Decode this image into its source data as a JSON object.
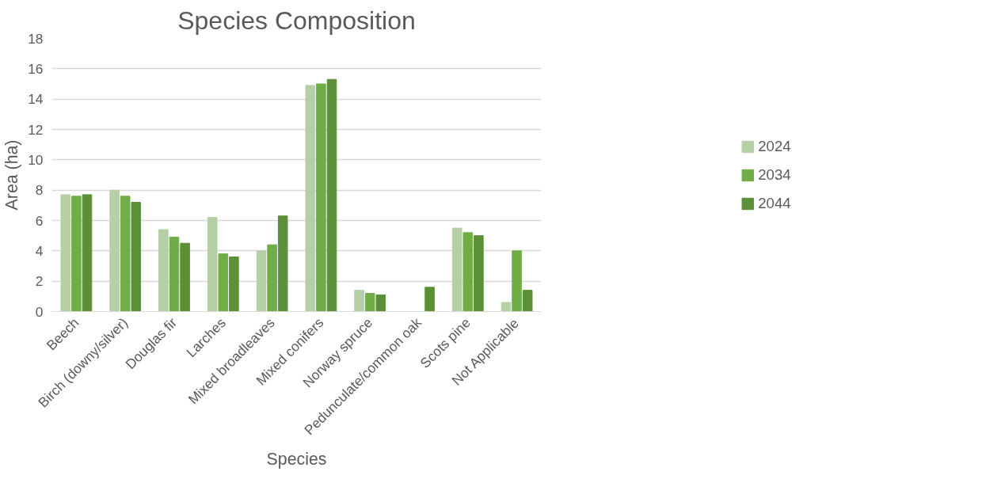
{
  "chart_data": {
    "type": "bar",
    "title": "Species Composition",
    "xlabel": "Species",
    "ylabel": "Area (ha)",
    "categories": [
      "Beech",
      "Birch (downy/silver)",
      "Douglas fir",
      "Larches",
      "Mixed broadleaves",
      "Mixed conifers",
      "Norway spruce",
      "Pedunculate/common oak",
      "Scots pine",
      "Not Applicable"
    ],
    "series": [
      {
        "name": "2024",
        "color": "#b5cfa6",
        "values": [
          7.7,
          8.0,
          5.4,
          6.2,
          4.0,
          14.9,
          1.4,
          null,
          5.5,
          0.6
        ]
      },
      {
        "name": "2034",
        "color": "#70ad47",
        "values": [
          7.6,
          7.6,
          4.9,
          3.8,
          4.4,
          15.0,
          1.2,
          null,
          5.2,
          4.0
        ]
      },
      {
        "name": "2044",
        "color": "#5b8f38",
        "values": [
          7.7,
          7.2,
          4.5,
          3.6,
          6.3,
          15.3,
          1.1,
          1.6,
          5.0,
          1.4
        ]
      }
    ],
    "ylim": [
      0,
      18
    ],
    "yticks": [
      0,
      2,
      4,
      6,
      8,
      10,
      12,
      14,
      16,
      18
    ],
    "grid": "y",
    "legend": "right"
  }
}
